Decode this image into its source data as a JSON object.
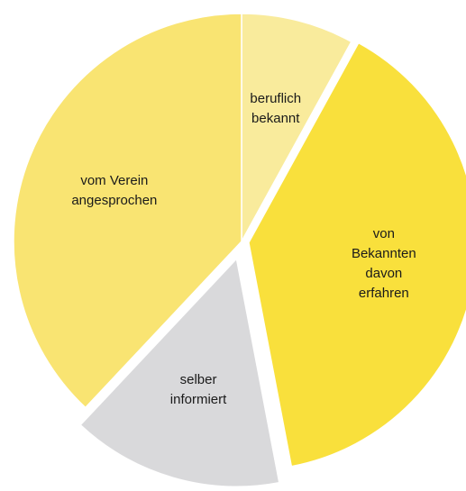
{
  "chart_data": {
    "type": "pie",
    "categories": [
      "beruflich\nbekannt",
      "von Bekannten\ndavon erfahren",
      "selber\ninformiert",
      "vom Verein\nangesprochen"
    ],
    "values": [
      8,
      39,
      15,
      38
    ],
    "colors": [
      "#f9eb9c",
      "#f9e03c",
      "#d9d9db",
      "#f9e472"
    ],
    "explode": [
      0,
      8,
      20,
      0
    ]
  }
}
